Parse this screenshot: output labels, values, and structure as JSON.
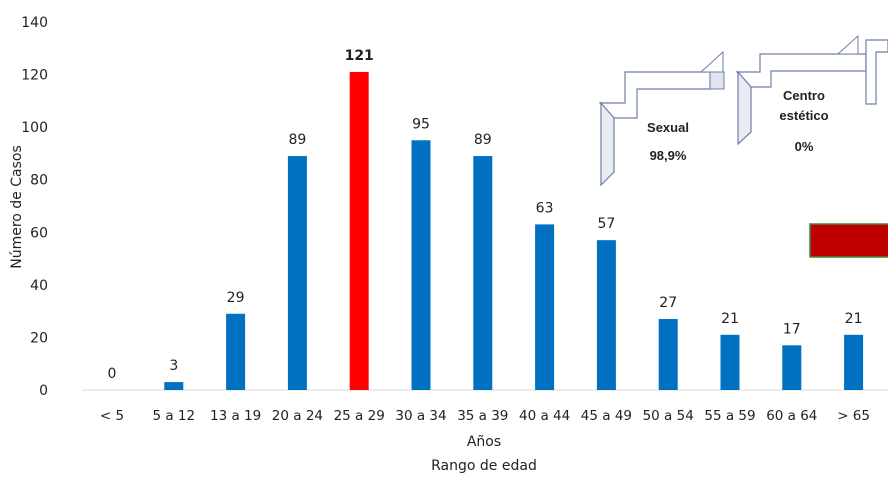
{
  "chart_data": {
    "type": "bar",
    "categories": [
      "< 5",
      "5 a 12",
      "13 a 19",
      "20 a 24",
      "25 a 29",
      "30 a 34",
      "35 a 39",
      "40 a 44",
      "45 a 49",
      "50 a 54",
      "55 a 59",
      "60 a 64",
      "> 65"
    ],
    "values": [
      0,
      3,
      29,
      89,
      121,
      95,
      89,
      63,
      57,
      27,
      21,
      17,
      21
    ],
    "highlight_index": 4,
    "xlabel": "Años",
    "xlabel2": "Rango de edad",
    "ylabel": "Número de Casos",
    "ylim": [
      0,
      140
    ],
    "yticks": [
      0,
      20,
      40,
      60,
      80,
      100,
      120,
      140
    ],
    "grid": false,
    "legend": "none",
    "colors": {
      "bar": "#0070c0",
      "highlight": "#ff0000"
    }
  },
  "callouts": [
    {
      "lines": [
        "Sexual",
        "98,9%"
      ]
    },
    {
      "lines": [
        "Centro",
        "estético",
        "0%"
      ]
    }
  ],
  "swatch_color": "#c00000"
}
